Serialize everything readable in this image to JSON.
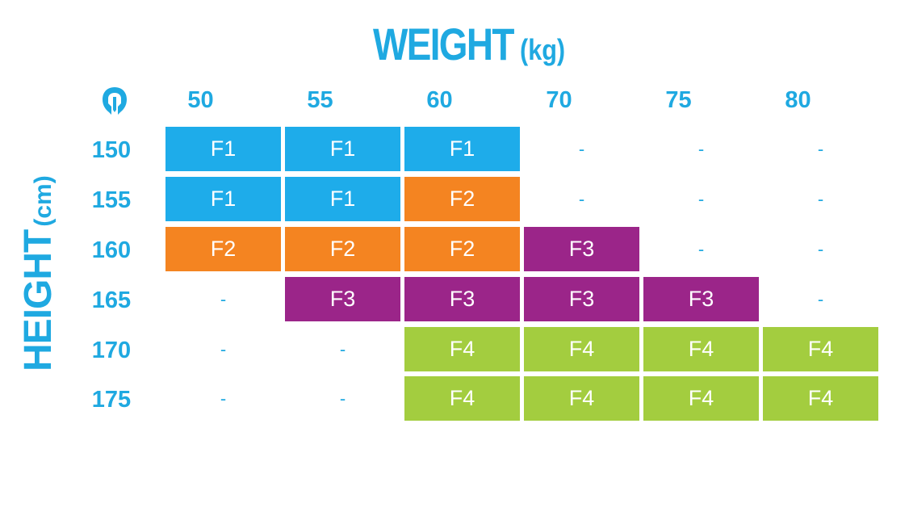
{
  "chart_data": {
    "type": "table",
    "title": "WEIGHT",
    "title_unit": "(kg)",
    "ylabel": "HEIGHT",
    "ylabel_unit": "(cm)",
    "columns": [
      "50",
      "55",
      "60",
      "70",
      "75",
      "80"
    ],
    "rows": [
      "150",
      "155",
      "160",
      "165",
      "170",
      "175"
    ],
    "cells": [
      [
        "F1",
        "F1",
        "F1",
        "-",
        "-",
        "-"
      ],
      [
        "F1",
        "F1",
        "F2",
        "-",
        "-",
        "-"
      ],
      [
        "F2",
        "F2",
        "F2",
        "F3",
        "-",
        "-"
      ],
      [
        "-",
        "F3",
        "F3",
        "F3",
        "F3",
        "-"
      ],
      [
        "-",
        "-",
        "F4",
        "F4",
        "F4",
        "F4"
      ],
      [
        "-",
        "-",
        "F4",
        "F4",
        "F4",
        "F4"
      ]
    ],
    "colors": {
      "F1": "#1eacea",
      "F2": "#f48421",
      "F3": "#9b2589",
      "F4": "#a3cd3f",
      "text_accent": "#1fa9e1"
    }
  },
  "icons": {
    "logo": "helmet-logo-icon"
  }
}
